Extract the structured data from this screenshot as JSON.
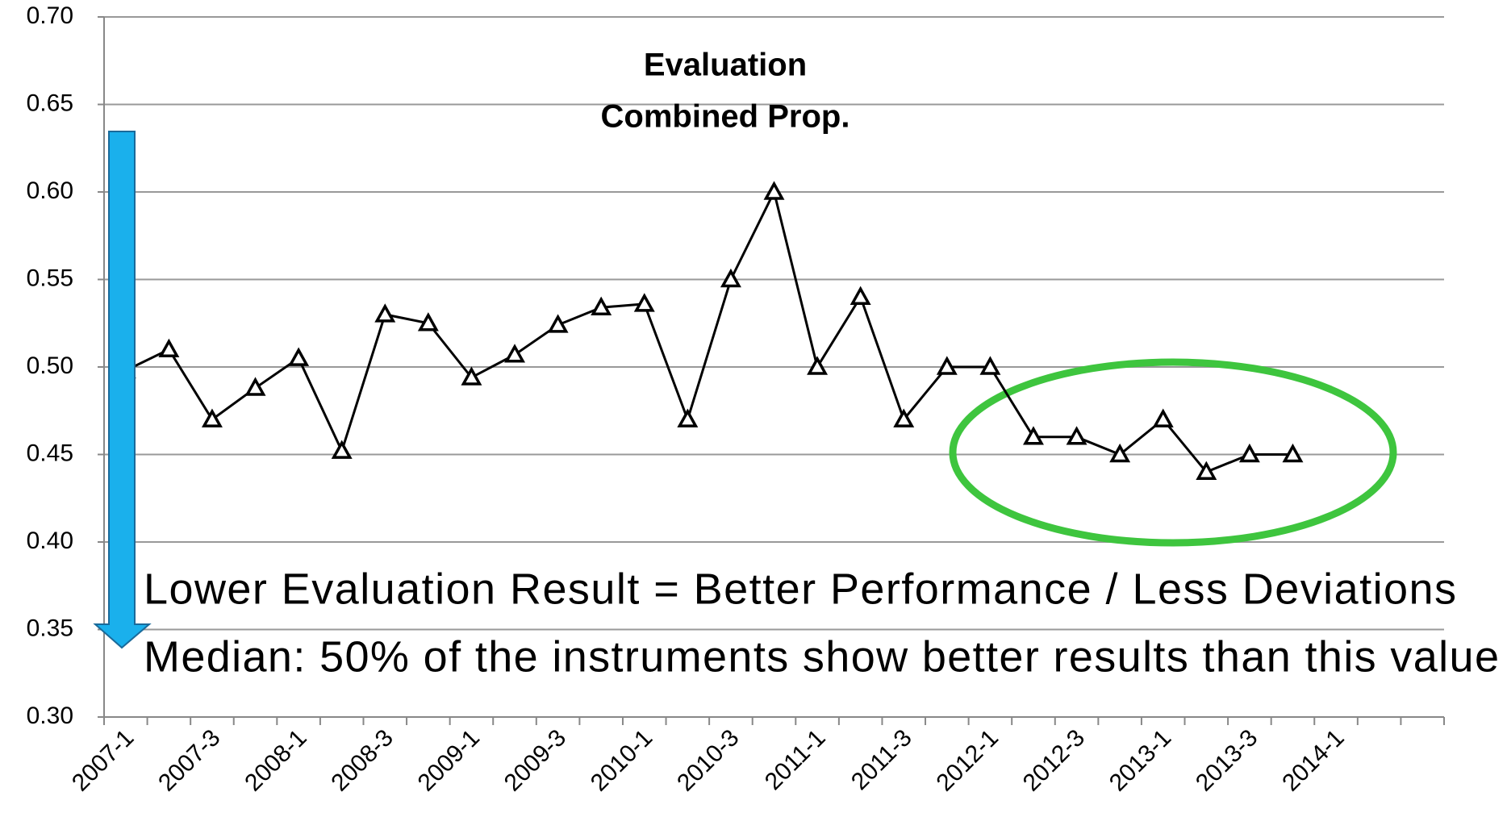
{
  "chart_data": {
    "type": "line",
    "title": "Evaluation",
    "subtitle": "Combined Prop.",
    "annotations": [
      "Lower Evaluation Result = Better Performance / Less Deviations",
      "Median: 50% of the instruments show better results than this value"
    ],
    "categories": [
      "2007-1",
      null,
      "2007-3",
      null,
      "2008-1",
      null,
      "2008-3",
      null,
      "2009-1",
      null,
      "2009-3",
      null,
      "2010-1",
      null,
      "2010-3",
      null,
      "2011-1",
      null,
      "2011-3",
      null,
      "2012-1",
      null,
      "2012-3",
      null,
      "2013-1",
      null,
      "2013-3",
      null,
      "2014-1",
      null,
      null
    ],
    "series": [
      {
        "color": "#000000",
        "marker": "triangle",
        "values": [
          0.498,
          0.51,
          0.47,
          0.488,
          0.505,
          0.452,
          0.53,
          0.525,
          0.494,
          0.507,
          0.524,
          0.534,
          0.536,
          0.47,
          0.55,
          0.6,
          0.5,
          0.54,
          0.47,
          0.5,
          0.5,
          0.46,
          0.46,
          0.45,
          0.47,
          0.44,
          0.45,
          0.45,
          null,
          null,
          null
        ]
      }
    ],
    "ylim": [
      0.3,
      0.7
    ],
    "yticks": [
      {
        "value": 0.3,
        "label": "0.30"
      },
      0.35,
      {
        "value": 0.4,
        "label": "0.40"
      },
      0.45,
      {
        "value": 0.5,
        "label": "0.50"
      },
      0.55,
      {
        "value": 0.6,
        "label": "0.60"
      },
      0.65,
      {
        "value": 0.7,
        "label": "0.70"
      }
    ],
    "grid": true
  }
}
